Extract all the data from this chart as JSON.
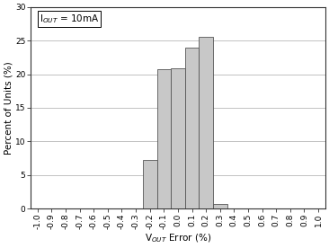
{
  "bar_centers": [
    -0.2,
    -0.1,
    0.0,
    0.1,
    0.2,
    0.3
  ],
  "bar_heights": [
    7.2,
    20.7,
    20.9,
    24.0,
    25.5,
    0.7
  ],
  "bar_width": 0.1,
  "bar_color": "#c8c8c8",
  "bar_edgecolor": "#555555",
  "bar_linewidth": 0.6,
  "xlabel": "V$_{OUT}$ Error (%)",
  "ylabel": "Percent of Units (%)",
  "annotation": "I$_{OUT}$ = 10mA",
  "xlim": [
    -1.05,
    1.05
  ],
  "ylim": [
    0,
    30
  ],
  "xticks": [
    -1.0,
    -0.9,
    -0.8,
    -0.7,
    -0.6,
    -0.5,
    -0.4,
    -0.3,
    -0.2,
    -0.1,
    0.0,
    0.1,
    0.2,
    0.3,
    0.4,
    0.5,
    0.6,
    0.7,
    0.8,
    0.9,
    1.0
  ],
  "yticks": [
    0,
    5,
    10,
    15,
    20,
    25,
    30
  ],
  "label_fontsize": 7.5,
  "tick_fontsize": 6.5,
  "annot_fontsize": 7.5,
  "grid_color": "#aaaaaa",
  "background_color": "#ffffff"
}
